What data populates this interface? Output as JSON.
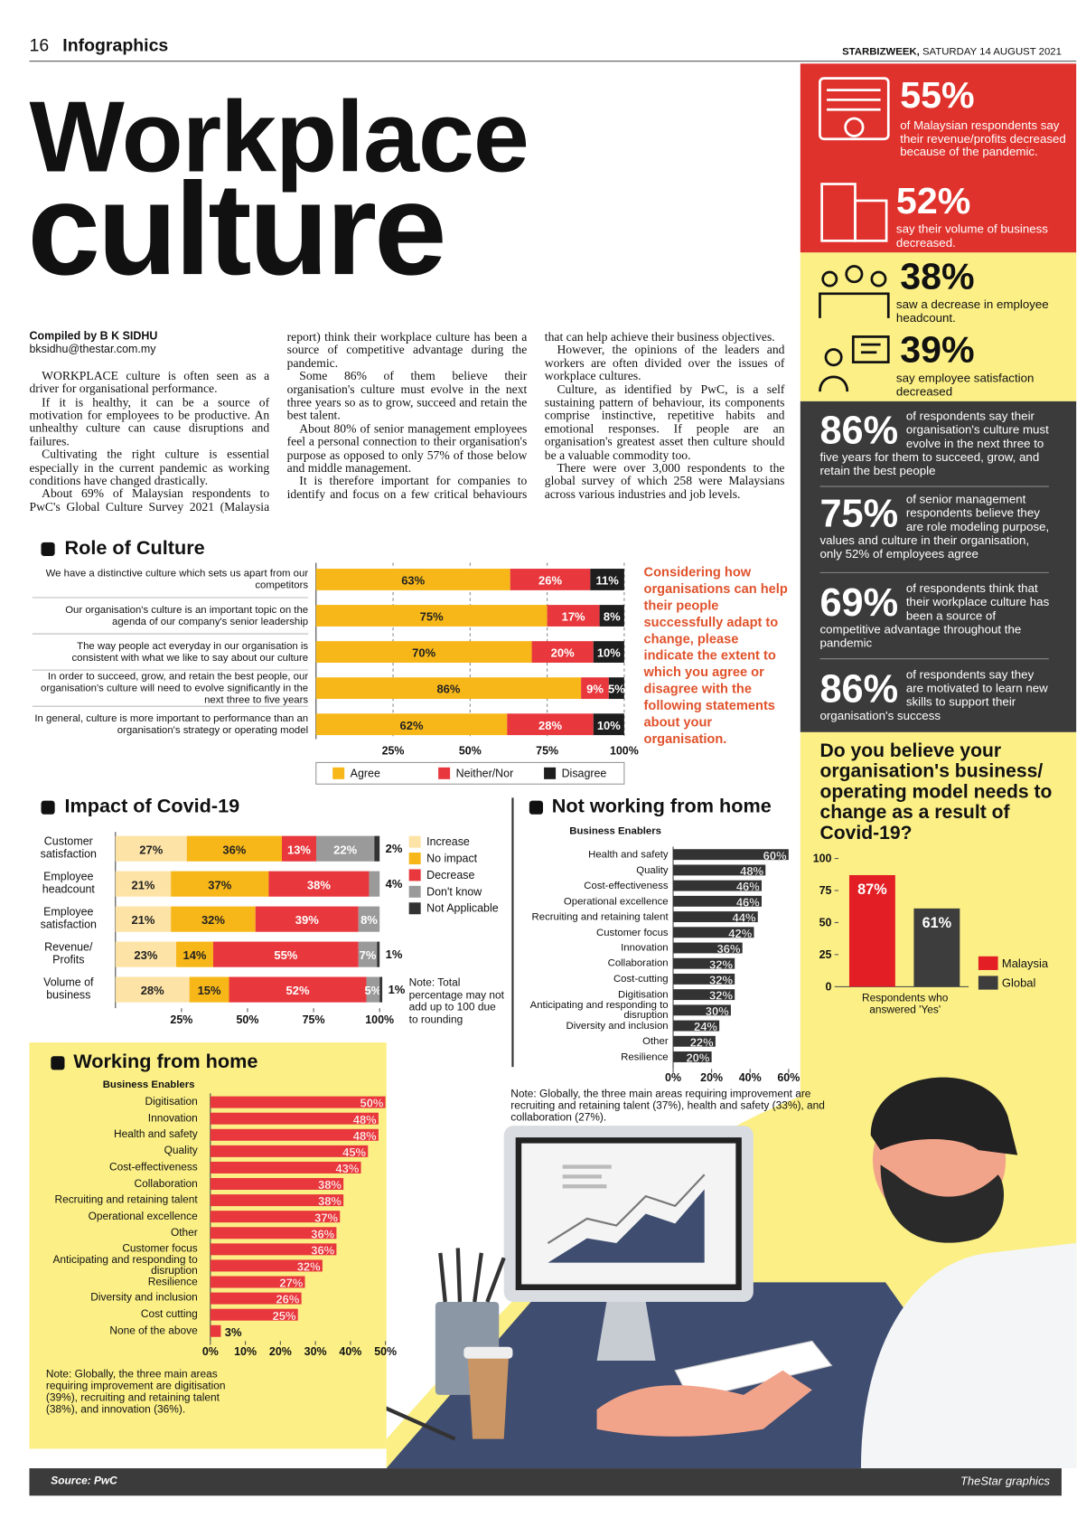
{
  "header": {
    "page_number": "16",
    "section": "Infographics",
    "publication": "STARBIZWEEK,",
    "date": "SATURDAY 14 AUGUST 2021"
  },
  "title": {
    "line1": "Workplace",
    "line2": "culture"
  },
  "byline": {
    "compiled": "Compiled by B K SIDHU",
    "email": "bksidhu@thestar.com.my"
  },
  "article": {
    "paragraphs": [
      "WORKPLACE culture is often seen as a driver for organisational performance.",
      "If it is healthy, it can be a source of motivation for employees to be productive. An unhealthy culture can cause disruptions and failures.",
      "Cultivating the right culture is essential especially in the current pandemic as working conditions have changed drastically.",
      "About 69% of Malaysian respondents to PwC's Global Culture Survey 2021 (Malaysia report) think their workplace culture has been a source of competitive advantage during the pandemic.",
      "Some 86% of them believe their organisation's culture must evolve in the next three years so as to grow, succeed and retain the best talent.",
      "About 80% of senior management employees feel a personal connection to their organisation's purpose as opposed to only 57% of those below and middle management.",
      "It is therefore important for companies to identify and focus on a few critical behaviours that can help achieve their business objectives.",
      "However, the opinions of the leaders and workers are often divided over the issues of workplace cultures.",
      "Culture, as identified by PwC, is a self sustaining pattern of behaviour, its components comprise instinctive, repetitive habits and emotional responses. If people are an organisation's greatest asset then culture should be a valuable commodity too.",
      "There were over 3,000 respondents to the global survey of which 258 were Malaysians across various industries and job levels."
    ]
  },
  "stats": [
    {
      "value": "55%",
      "text": "of Malaysian respondents say their revenue/profits decreased because of the pandemic."
    },
    {
      "value": "52%",
      "text": "say their volume of business decreased."
    },
    {
      "value": "38%",
      "text": "saw a decrease in employee headcount."
    },
    {
      "value": "39%",
      "text": "say employee satisfaction decreased"
    },
    {
      "value": "86%",
      "text": "of respondents say their organisation's culture must evolve in the next three to five years for them to succeed, grow, and retain the best people"
    },
    {
      "value": "75%",
      "text": "of senior management respondents believe they are role modeling purpose, values and culture in their organisation, only 52% of employees agree"
    },
    {
      "value": "69%",
      "text": "of respondents think that their workplace culture has been a source of competitive advantage throughout the pandemic"
    },
    {
      "value": "86%",
      "text": "of respondents say they are motivated to learn new skills to support their organisation's success"
    }
  ],
  "chart_data": [
    {
      "type": "bar",
      "orientation": "horizontal",
      "stacked": true,
      "title": "Role of Culture",
      "annotation": "Considering how organisations can help their people successfully adapt to change, please indicate the extent to which you agree or disagree with the following statements about your organisation.",
      "categories": [
        "We have a distinctive culture which sets us apart from our competitors",
        "Our organisation's culture is an important topic on the agenda of our company's senior leadership",
        "The way people act everyday in our organisation is consistent with what we like to say about our culture",
        "In order to succeed, grow, and retain the best people, our organisation's culture will need to evolve significantly in the next three to five years",
        "In general, culture is more important to performance than an organisation's strategy or operating model"
      ],
      "series": [
        {
          "name": "Agree",
          "color": "#f7b718",
          "values": [
            63,
            75,
            70,
            86,
            62
          ],
          "value_labels": [
            "63%",
            "75%",
            "70%",
            "86%",
            "62%"
          ]
        },
        {
          "name": "Neither/Nor",
          "color": "#e8383d",
          "values": [
            26,
            17,
            20,
            9,
            28
          ],
          "value_labels": [
            "26%",
            "17%",
            "20%",
            "9%",
            "28%"
          ]
        },
        {
          "name": "Disagree",
          "color": "#1e1e1e",
          "values": [
            11,
            8,
            10,
            5,
            10
          ],
          "value_labels": [
            "11%",
            "8%",
            "10%",
            "5%",
            "10%"
          ]
        }
      ],
      "xlim": [
        0,
        100
      ],
      "xticks": [
        {
          "value": 25,
          "label": "25%"
        },
        {
          "value": 50,
          "label": "50%"
        },
        {
          "value": 75,
          "label": "75%"
        },
        {
          "value": 100,
          "label": "100%"
        }
      ],
      "grid": true,
      "legend": "bottom"
    },
    {
      "type": "bar",
      "orientation": "horizontal",
      "stacked": true,
      "title": "Impact of Covid-19",
      "note": "Note: Total percentage may not add up to 100 due to rounding",
      "categories": [
        "Customer satisfaction",
        "Employee headcount",
        "Employee satisfaction",
        "Revenue/ Profits",
        "Volume of business"
      ],
      "series": [
        {
          "name": "Increase",
          "color": "#fde3a6",
          "values": [
            27,
            21,
            21,
            23,
            28
          ],
          "value_labels": [
            "27%",
            "21%",
            "21%",
            "23%",
            "28%"
          ]
        },
        {
          "name": "No impact",
          "color": "#f7b718",
          "values": [
            36,
            37,
            32,
            14,
            15
          ],
          "value_labels": [
            "36%",
            "37%",
            "32%",
            "14%",
            "15%"
          ]
        },
        {
          "name": "Decrease",
          "color": "#e8383d",
          "values": [
            13,
            38,
            39,
            55,
            52
          ],
          "value_labels": [
            "13%",
            "38%",
            "39%",
            "55%",
            "52%"
          ]
        },
        {
          "name": "Don't know",
          "color": "#9a9a9a",
          "values": [
            22,
            4,
            8,
            7,
            5
          ],
          "value_labels": [
            "22%",
            "4%",
            "8%",
            "7%",
            "5%"
          ]
        },
        {
          "name": "Not Applicable",
          "color": "#333333",
          "values": [
            2,
            null,
            null,
            1,
            1
          ],
          "value_labels": [
            "2%",
            null,
            null,
            "1%",
            "1%"
          ]
        }
      ],
      "xlim": [
        0,
        100
      ],
      "xticks": [
        {
          "value": 25,
          "label": "25%"
        },
        {
          "value": 50,
          "label": "50%"
        },
        {
          "value": 75,
          "label": "75%"
        },
        {
          "value": 100,
          "label": "100%"
        }
      ],
      "grid": false,
      "legend": "right"
    },
    {
      "type": "bar",
      "orientation": "horizontal",
      "title": "Not working from home",
      "subtitle": "Business Enablers",
      "note": "Note: Globally, the three main areas requiring improvement are recruiting and retaining talent (37%), health and safety (33%), and collaboration (27%).",
      "categories": [
        "Health and safety",
        "Quality",
        "Cost-effectiveness",
        "Operational excellence",
        "Recruiting and retaining talent",
        "Customer focus",
        "Innovation",
        "Collaboration",
        "Cost-cutting",
        "Digitisation",
        "Anticipating and responding to disruption",
        "Diversity and inclusion",
        "Other",
        "Resilience"
      ],
      "values": [
        60,
        48,
        46,
        46,
        44,
        42,
        36,
        32,
        32,
        32,
        30,
        24,
        22,
        20
      ],
      "value_labels": [
        "60%",
        "48%",
        "46%",
        "46%",
        "44%",
        "42%",
        "36%",
        "32%",
        "32%",
        "32%",
        "30%",
        "24%",
        "22%",
        "20%"
      ],
      "color": "#333333",
      "xlim": [
        0,
        60
      ],
      "xticks": [
        {
          "value": 0,
          "label": "0%"
        },
        {
          "value": 20,
          "label": "20%"
        },
        {
          "value": 40,
          "label": "40%"
        },
        {
          "value": 60,
          "label": "60%"
        }
      ],
      "grid": false
    },
    {
      "type": "bar",
      "orientation": "horizontal",
      "title": "Working from home",
      "subtitle": "Business Enablers",
      "note": "Note: Globally, the three main areas requiring improvement are digitisation (39%), recruiting and retaining talent (38%), and innovation (36%).",
      "categories": [
        "Digitisation",
        "Innovation",
        "Health and safety",
        "Quality",
        "Cost-effectiveness",
        "Collaboration",
        "Recruiting and retaining talent",
        "Operational excellence",
        "Other",
        "Customer focus",
        "Anticipating and responding to disruption",
        "Resilience",
        "Diversity and inclusion",
        "Cost cutting",
        "None of the above"
      ],
      "values": [
        50,
        48,
        48,
        45,
        43,
        38,
        38,
        37,
        36,
        36,
        32,
        27,
        26,
        25,
        3
      ],
      "value_labels": [
        "50%",
        "48%",
        "48%",
        "45%",
        "43%",
        "38%",
        "38%",
        "37%",
        "36%",
        "36%",
        "32%",
        "27%",
        "26%",
        "25%",
        "3%"
      ],
      "color": "#e8383d",
      "xlim": [
        0,
        50
      ],
      "xticks": [
        {
          "value": 0,
          "label": "0%"
        },
        {
          "value": 10,
          "label": "10%"
        },
        {
          "value": 20,
          "label": "20%"
        },
        {
          "value": 30,
          "label": "30%"
        },
        {
          "value": 40,
          "label": "40%"
        },
        {
          "value": 50,
          "label": "50%"
        }
      ],
      "grid": false
    },
    {
      "type": "bar",
      "title": "Do you believe your organisation's business/ operating model needs to change as a result of Covid-19?",
      "categories": [
        "Respondents who answered 'Yes'"
      ],
      "series": [
        {
          "name": "Malaysia",
          "color": "#e31e24",
          "values": [
            87
          ],
          "value_labels": [
            "87%"
          ]
        },
        {
          "name": "Global",
          "color": "#3d3d3d",
          "values": [
            61
          ],
          "value_labels": [
            "61%"
          ]
        }
      ],
      "ylim": [
        0,
        100
      ],
      "yticks": [
        0,
        25,
        50,
        75,
        100
      ],
      "grid": false,
      "legend": "right"
    }
  ],
  "footer": {
    "source": "Source: PwC",
    "credit": "TheStar graphics"
  }
}
